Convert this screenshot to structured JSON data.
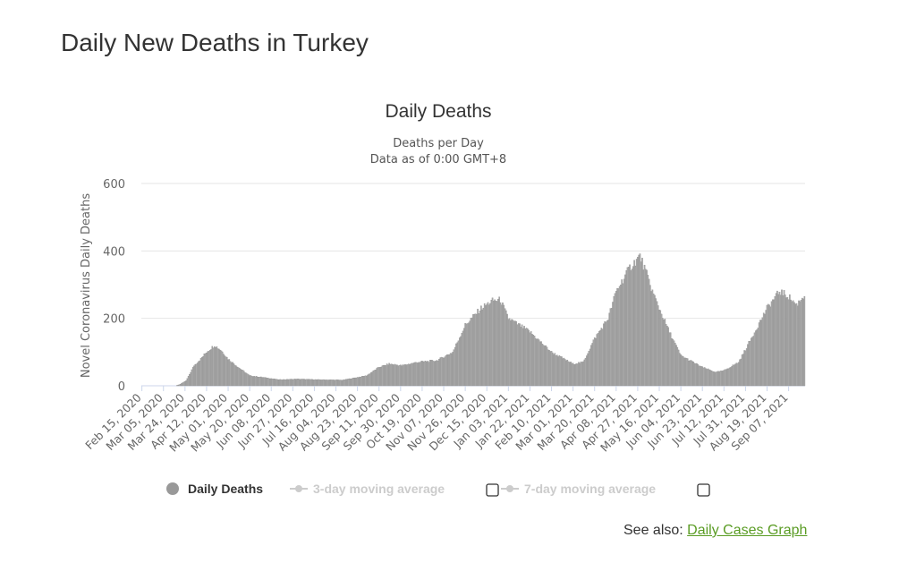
{
  "page": {
    "title": "Daily New Deaths in Turkey"
  },
  "see_also": {
    "prefix": "See also: ",
    "link_label": "Daily Cases Graph"
  },
  "legend": {
    "items": [
      {
        "label": "Daily Deaths",
        "color": "#999999",
        "active": true,
        "has_checkbox": false
      },
      {
        "label": "3-day moving average",
        "color": "#cccccc",
        "active": false,
        "has_checkbox": true
      },
      {
        "label": "7-day moving average",
        "color": "#cccccc",
        "active": false,
        "has_checkbox": true
      }
    ]
  },
  "colors": {
    "bar": "#aaaaaa",
    "bar_edge": "#888888",
    "grid": "#e6e6e6",
    "axis": "#ccd6eb",
    "link": "#5a9c24"
  },
  "chart_data": {
    "type": "bar",
    "title": "Daily Deaths",
    "subtitle_lines": [
      "Deaths per Day",
      "Data as of 0:00 GMT+8"
    ],
    "xlabel": "",
    "ylabel": "Novel Coronavirus Daily Deaths",
    "ylim": [
      0,
      600
    ],
    "yticks": [
      0,
      200,
      400,
      600
    ],
    "x_start": "Feb 15, 2020",
    "x_end": "Sep 21, 2021",
    "tick_labels": [
      "Feb 15, 2020",
      "Mar 05, 2020",
      "Mar 24, 2020",
      "Apr 12, 2020",
      "May 01, 2020",
      "May 20, 2020",
      "Jun 08, 2020",
      "Jun 27, 2020",
      "Jul 16, 2020",
      "Aug 04, 2020",
      "Aug 23, 2020",
      "Sep 11, 2020",
      "Sep 30, 2020",
      "Oct 19, 2020",
      "Nov 07, 2020",
      "Nov 26, 2020",
      "Dec 15, 2020",
      "Jan 03, 2021",
      "Jan 22, 2021",
      "Feb 10, 2021",
      "Mar 01, 2021",
      "Mar 20, 2021",
      "Apr 08, 2021",
      "Apr 27, 2021",
      "May 16, 2021",
      "Jun 04, 2021",
      "Jun 23, 2021",
      "Jul 12, 2021",
      "Jul 31, 2021",
      "Aug 19, 2021",
      "Sep 07, 2021"
    ],
    "series": [
      {
        "name": "Daily Deaths",
        "anchor_points": [
          [
            "Feb 15, 2020",
            0
          ],
          [
            "Mar 16, 2020",
            0
          ],
          [
            "Mar 20, 2020",
            5
          ],
          [
            "Mar 25, 2020",
            15
          ],
          [
            "Apr 01, 2020",
            60
          ],
          [
            "Apr 07, 2020",
            80
          ],
          [
            "Apr 12, 2020",
            100
          ],
          [
            "Apr 19, 2020",
            120
          ],
          [
            "Apr 25, 2020",
            105
          ],
          [
            "May 01, 2020",
            80
          ],
          [
            "May 10, 2020",
            55
          ],
          [
            "May 20, 2020",
            30
          ],
          [
            "Jun 01, 2020",
            25
          ],
          [
            "Jun 15, 2020",
            18
          ],
          [
            "Jul 01, 2020",
            20
          ],
          [
            "Jul 20, 2020",
            18
          ],
          [
            "Aug 10, 2020",
            17
          ],
          [
            "Aug 31, 2020",
            30
          ],
          [
            "Sep 11, 2020",
            55
          ],
          [
            "Sep 20, 2020",
            65
          ],
          [
            "Oct 01, 2020",
            60
          ],
          [
            "Oct 15, 2020",
            70
          ],
          [
            "Nov 01, 2020",
            75
          ],
          [
            "Nov 15, 2020",
            100
          ],
          [
            "Nov 26, 2020",
            180
          ],
          [
            "Dec 10, 2020",
            230
          ],
          [
            "Dec 20, 2020",
            252
          ],
          [
            "Dec 27, 2020",
            255
          ],
          [
            "Jan 03, 2021",
            200
          ],
          [
            "Jan 22, 2021",
            160
          ],
          [
            "Feb 10, 2021",
            100
          ],
          [
            "Mar 01, 2021",
            65
          ],
          [
            "Mar 10, 2021",
            70
          ],
          [
            "Mar 20, 2021",
            140
          ],
          [
            "Apr 01, 2021",
            200
          ],
          [
            "Apr 08, 2021",
            280
          ],
          [
            "Apr 20, 2021",
            350
          ],
          [
            "Apr 29, 2021",
            385
          ],
          [
            "May 05, 2021",
            330
          ],
          [
            "May 10, 2021",
            280
          ],
          [
            "May 16, 2021",
            230
          ],
          [
            "May 25, 2021",
            160
          ],
          [
            "Jun 04, 2021",
            90
          ],
          [
            "Jun 23, 2021",
            55
          ],
          [
            "Jul 05, 2021",
            40
          ],
          [
            "Jul 12, 2021",
            45
          ],
          [
            "Jul 25, 2021",
            70
          ],
          [
            "Aug 05, 2021",
            140
          ],
          [
            "Aug 19, 2021",
            230
          ],
          [
            "Aug 30, 2021",
            280
          ],
          [
            "Sep 07, 2021",
            265
          ],
          [
            "Sep 14, 2021",
            240
          ],
          [
            "Sep 21, 2021",
            270
          ]
        ]
      }
    ]
  }
}
